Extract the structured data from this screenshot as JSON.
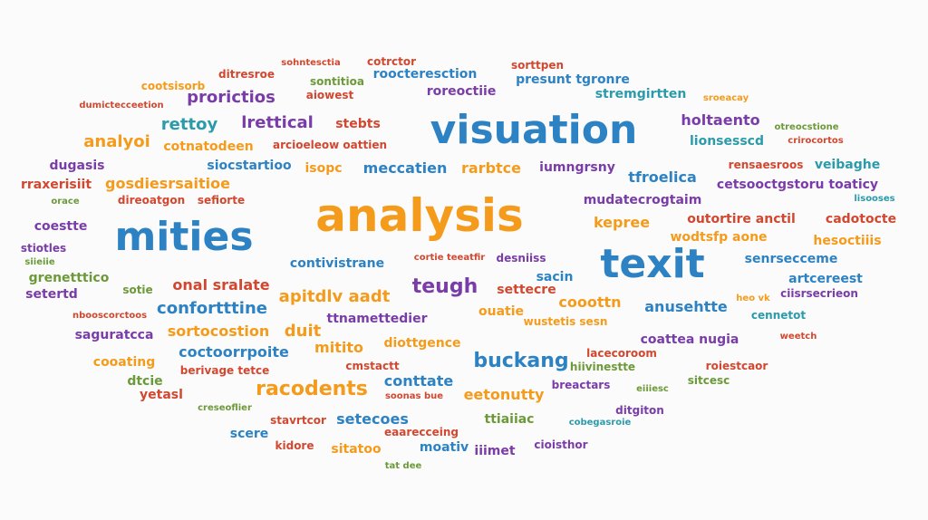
{
  "word_cloud": {
    "words": [
      {
        "text": "analysis",
        "color": "#f59b1b"
      },
      {
        "text": "visuation",
        "color": "#2d82c4"
      },
      {
        "text": "mities",
        "color": "#2d82c4"
      },
      {
        "text": "texit",
        "color": "#2d82c4"
      },
      {
        "text": "racodents",
        "color": "#f59b1b"
      },
      {
        "text": "buckang",
        "color": "#2d82c4"
      },
      {
        "text": "teugh",
        "color": "#7a3ca8"
      },
      {
        "text": "confortttine",
        "color": "#2d82c4"
      },
      {
        "text": "rettoy",
        "color": "#2b9bab"
      },
      {
        "text": "lrettical",
        "color": "#7a3ca8"
      },
      {
        "text": "stebts",
        "color": "#d2472f"
      },
      {
        "text": "analyoi",
        "color": "#f59b1b"
      },
      {
        "text": "prorictios",
        "color": "#7a3ca8"
      },
      {
        "text": "cootsisorb",
        "color": "#f59b1b"
      },
      {
        "text": "ditresroe",
        "color": "#d2472f"
      },
      {
        "text": "sohntesctia",
        "color": "#d2472f"
      },
      {
        "text": "sontitioa",
        "color": "#6c9a39"
      },
      {
        "text": "aiowest",
        "color": "#d2472f"
      },
      {
        "text": "cotrctor",
        "color": "#d2472f"
      },
      {
        "text": "roocteresction",
        "color": "#2d82c4"
      },
      {
        "text": "roreoctiie",
        "color": "#7a3ca8"
      },
      {
        "text": "sorttpen",
        "color": "#d2472f"
      },
      {
        "text": "presunt tgronre",
        "color": "#2d82c4"
      },
      {
        "text": "stremgirtten",
        "color": "#2b9bab"
      },
      {
        "text": "sroeacay",
        "color": "#f59b1b"
      },
      {
        "text": "holtaento",
        "color": "#7a3ca8"
      },
      {
        "text": "otreocstione",
        "color": "#6c9a39"
      },
      {
        "text": "lionsesscd",
        "color": "#2b9bab"
      },
      {
        "text": "crirocortos",
        "color": "#d2472f"
      },
      {
        "text": "dumictecceetion",
        "color": "#d2472f"
      },
      {
        "text": "cotnatodeen",
        "color": "#f59b1b"
      },
      {
        "text": "arcioeleow oattien",
        "color": "#d2472f"
      },
      {
        "text": "dugasis",
        "color": "#7a3ca8"
      },
      {
        "text": "siocstartioo",
        "color": "#2d82c4"
      },
      {
        "text": "isopc",
        "color": "#f59b1b"
      },
      {
        "text": "meccatien",
        "color": "#2d82c4"
      },
      {
        "text": "rarbtce",
        "color": "#f59b1b"
      },
      {
        "text": "iumngrsny",
        "color": "#7a3ca8"
      },
      {
        "text": "tfroelica",
        "color": "#2d82c4"
      },
      {
        "text": "rensaesroos",
        "color": "#d2472f"
      },
      {
        "text": "veibaghe",
        "color": "#2b9bab"
      },
      {
        "text": "rraxerisiit",
        "color": "#d2472f"
      },
      {
        "text": "gosdiesrsaitioe",
        "color": "#f59b1b"
      },
      {
        "text": "cetsooctgstoru toaticy",
        "color": "#7a3ca8"
      },
      {
        "text": "lisooses",
        "color": "#2b9bab"
      },
      {
        "text": "orace",
        "color": "#6c9a39"
      },
      {
        "text": "direoatgon",
        "color": "#d2472f"
      },
      {
        "text": "sefiorte",
        "color": "#d2472f"
      },
      {
        "text": "mudatecrogtaim",
        "color": "#7a3ca8"
      },
      {
        "text": "coestte",
        "color": "#7a3ca8"
      },
      {
        "text": "kepree",
        "color": "#f59b1b"
      },
      {
        "text": "outortire anctil",
        "color": "#d2472f"
      },
      {
        "text": "cadotocte",
        "color": "#d2472f"
      },
      {
        "text": "stiotles",
        "color": "#7a3ca8"
      },
      {
        "text": "wodtsfp aone",
        "color": "#f59b1b"
      },
      {
        "text": "hesoctiiis",
        "color": "#f59b1b"
      },
      {
        "text": "siieiie",
        "color": "#6c9a39"
      },
      {
        "text": "contivistrane",
        "color": "#2d82c4"
      },
      {
        "text": "cortie teeatfir",
        "color": "#d2472f"
      },
      {
        "text": "desniiss",
        "color": "#7a3ca8"
      },
      {
        "text": "senrsecceme",
        "color": "#2d82c4"
      },
      {
        "text": "grenetttico",
        "color": "#6c9a39"
      },
      {
        "text": "artcereest",
        "color": "#2d82c4"
      },
      {
        "text": "sotie",
        "color": "#6c9a39"
      },
      {
        "text": "onal sralate",
        "color": "#d2472f"
      },
      {
        "text": "sacin",
        "color": "#2d82c4"
      },
      {
        "text": "setertd",
        "color": "#7a3ca8"
      },
      {
        "text": "ciisrsecrieon",
        "color": "#7a3ca8"
      },
      {
        "text": "apitdlv aadt",
        "color": "#f59b1b"
      },
      {
        "text": "settecre",
        "color": "#d2472f"
      },
      {
        "text": "cooottn",
        "color": "#f59b1b"
      },
      {
        "text": "heo vk",
        "color": "#f59b1b"
      },
      {
        "text": "anusehtte",
        "color": "#2d82c4"
      },
      {
        "text": "nbooscorctoos",
        "color": "#d2472f"
      },
      {
        "text": "ttnamettedier",
        "color": "#7a3ca8"
      },
      {
        "text": "ouatie",
        "color": "#f59b1b"
      },
      {
        "text": "wustetis sesn",
        "color": "#f59b1b"
      },
      {
        "text": "cennetot",
        "color": "#2b9bab"
      },
      {
        "text": "saguratcca",
        "color": "#7a3ca8"
      },
      {
        "text": "sortocostion",
        "color": "#f59b1b"
      },
      {
        "text": "duit",
        "color": "#f59b1b"
      },
      {
        "text": "coattea nugia",
        "color": "#7a3ca8"
      },
      {
        "text": "weetch",
        "color": "#d2472f"
      },
      {
        "text": "coctoorrpoite",
        "color": "#2d82c4"
      },
      {
        "text": "mitito",
        "color": "#f59b1b"
      },
      {
        "text": "diottgence",
        "color": "#f59b1b"
      },
      {
        "text": "cooating",
        "color": "#f59b1b"
      },
      {
        "text": "lacecoroom",
        "color": "#d2472f"
      },
      {
        "text": "berivage tetce",
        "color": "#d2472f"
      },
      {
        "text": "cmstactt",
        "color": "#d2472f"
      },
      {
        "text": "hiivinestte",
        "color": "#6c9a39"
      },
      {
        "text": "roiestcaor",
        "color": "#d2472f"
      },
      {
        "text": "dtcie",
        "color": "#6c9a39"
      },
      {
        "text": "conttate",
        "color": "#2d82c4"
      },
      {
        "text": "breactars",
        "color": "#7a3ca8"
      },
      {
        "text": "eiiiesc",
        "color": "#6c9a39"
      },
      {
        "text": "sitcesc",
        "color": "#6c9a39"
      },
      {
        "text": "yetasl",
        "color": "#d2472f"
      },
      {
        "text": "soonas bue",
        "color": "#d2472f"
      },
      {
        "text": "eetonutty",
        "color": "#f59b1b"
      },
      {
        "text": "creseoflier",
        "color": "#6c9a39"
      },
      {
        "text": "ditgiton",
        "color": "#7a3ca8"
      },
      {
        "text": "stavrtcor",
        "color": "#d2472f"
      },
      {
        "text": "setecoes",
        "color": "#2d82c4"
      },
      {
        "text": "ttiaiiac",
        "color": "#6c9a39"
      },
      {
        "text": "cobegasroie",
        "color": "#2b9bab"
      },
      {
        "text": "scere",
        "color": "#2d82c4"
      },
      {
        "text": "eaarecceing",
        "color": "#d2472f"
      },
      {
        "text": "cioisthor",
        "color": "#7a3ca8"
      },
      {
        "text": "kidore",
        "color": "#d2472f"
      },
      {
        "text": "sitatoo",
        "color": "#f59b1b"
      },
      {
        "text": "moativ",
        "color": "#2d82c4"
      },
      {
        "text": "iiimet",
        "color": "#7a3ca8"
      },
      {
        "text": "tat dee",
        "color": "#6c9a39"
      }
    ]
  }
}
